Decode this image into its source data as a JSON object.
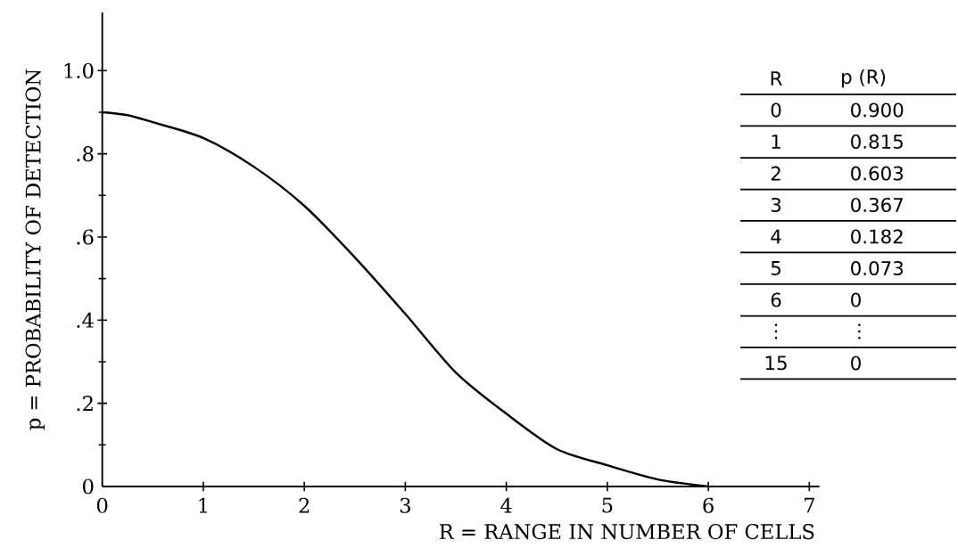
{
  "chart_data": {
    "type": "line",
    "xlabel": "R = RANGE IN NUMBER OF CELLS",
    "ylabel": "p = PROBABILITY OF DETECTION",
    "x": [
      0,
      0.25,
      0.5,
      1,
      1.5,
      2,
      2.5,
      3,
      3.5,
      4,
      4.5,
      5,
      5.5,
      6
    ],
    "series": [
      {
        "color": "#000000",
        "values": [
          0.9,
          0.893,
          0.876,
          0.838,
          0.769,
          0.675,
          0.551,
          0.415,
          0.274,
          0.175,
          0.09,
          0.051,
          0.017,
          0
        ]
      }
    ],
    "xlim": [
      0,
      7.1
    ],
    "ylim": [
      0,
      1.14
    ],
    "xticks": [
      0,
      1,
      2,
      3,
      4,
      5,
      6,
      7
    ],
    "yticks": [
      0,
      {
        "value": 0.2,
        "label": ".2"
      },
      {
        "value": 0.4,
        "label": ".4"
      },
      {
        "value": 0.6,
        "label": ".6"
      },
      {
        "value": 0.8,
        "label": ".8"
      },
      {
        "value": 1.0,
        "label": "1.0"
      }
    ],
    "annotations": [
      "R",
      "p (R)",
      "0",
      "0.900",
      "1",
      "0.815",
      "2",
      "0.603",
      "3",
      "0.367",
      "4",
      "0.182",
      "5",
      "0.073",
      "6",
      "0",
      "⋮",
      "⋮",
      "15",
      "0"
    ]
  }
}
